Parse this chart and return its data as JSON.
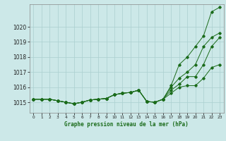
{
  "xlabel": "Graphe pression niveau de la mer (hPa)",
  "xlim": [
    -0.5,
    23.5
  ],
  "ylim": [
    1014.3,
    1021.5
  ],
  "yticks": [
    1015,
    1016,
    1017,
    1018,
    1019,
    1020
  ],
  "ytick_labels": [
    "1015",
    "1016",
    "1017",
    "1018",
    "1019",
    "1020"
  ],
  "xticks": [
    0,
    1,
    2,
    3,
    4,
    5,
    6,
    7,
    8,
    9,
    10,
    11,
    12,
    13,
    14,
    15,
    16,
    17,
    18,
    19,
    20,
    21,
    22,
    23
  ],
  "bg_color": "#cce8e8",
  "grid_color": "#aacfcf",
  "line_color": "#1a6b1a",
  "series": {
    "line1": [
      1015.2,
      1015.2,
      1015.2,
      1015.1,
      1015.0,
      1014.9,
      1015.0,
      1015.15,
      1015.2,
      1015.25,
      1015.5,
      1015.6,
      1015.65,
      1015.8,
      1015.05,
      1015.0,
      1015.2,
      1016.1,
      1017.5,
      1018.0,
      1018.7,
      1019.4,
      1021.0,
      1021.3
    ],
    "line2": [
      1015.2,
      1015.2,
      1015.2,
      1015.1,
      1015.0,
      1014.9,
      1015.0,
      1015.15,
      1015.2,
      1015.25,
      1015.5,
      1015.6,
      1015.65,
      1015.8,
      1015.05,
      1015.0,
      1015.2,
      1016.0,
      1016.6,
      1017.0,
      1017.5,
      1018.7,
      1019.3,
      1019.6
    ],
    "line3": [
      1015.2,
      1015.2,
      1015.2,
      1015.1,
      1015.0,
      1014.9,
      1015.0,
      1015.15,
      1015.2,
      1015.25,
      1015.5,
      1015.6,
      1015.65,
      1015.8,
      1015.05,
      1015.0,
      1015.2,
      1015.8,
      1016.2,
      1016.7,
      1016.7,
      1017.5,
      1018.7,
      1019.3
    ],
    "line4": [
      1015.2,
      1015.2,
      1015.2,
      1015.1,
      1015.0,
      1014.9,
      1015.0,
      1015.15,
      1015.2,
      1015.25,
      1015.5,
      1015.6,
      1015.65,
      1015.8,
      1015.05,
      1015.0,
      1015.2,
      1015.6,
      1016.0,
      1016.1,
      1016.1,
      1016.6,
      1017.3,
      1017.5
    ]
  },
  "figsize": [
    3.2,
    2.0
  ],
  "dpi": 100
}
